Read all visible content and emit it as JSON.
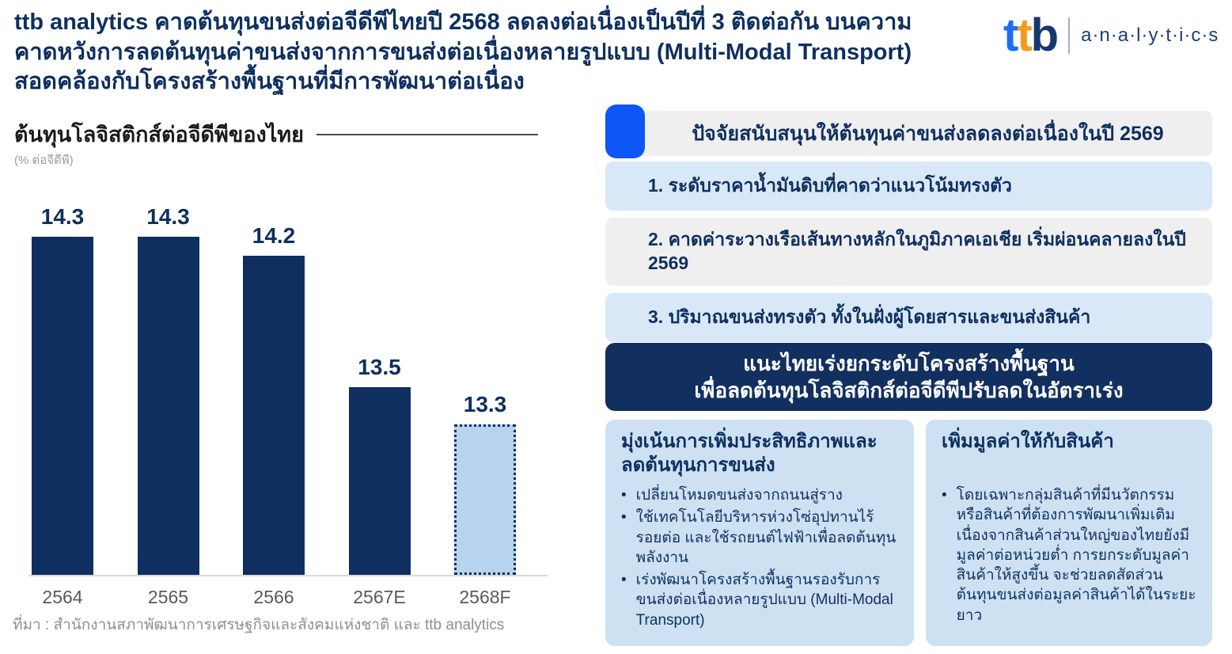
{
  "header": {
    "title_lines": [
      "ttb analytics คาดต้นทุนขนส่งต่อจีดีพีไทยปี 2568 ลดลงต่อเนื่องเป็นปีที่ 3 ติดต่อกัน บนความ",
      "คาดหวังการลดต้นทุนค่าขนส่งจากการขนส่งต่อเนื่องหลายรูปแบบ (Multi-Modal Transport)",
      "สอดคล้องกับโครงสร้างพื้นฐานที่มีการพัฒนาต่อเนื่อง"
    ]
  },
  "logo": {
    "t1": "t",
    "t2": "t",
    "b": "b",
    "analytics": "a·n·a·l·y·t·i·c·s"
  },
  "chart_data": {
    "type": "bar",
    "title": "ต้นทุนโลจิสติกส์ต่อจีดีพีของไทย",
    "subtitle": "(% ต่อจีดีพี)",
    "categories": [
      "2564",
      "2565",
      "2566",
      "2567E",
      "2568F"
    ],
    "values": [
      14.3,
      14.3,
      14.2,
      13.5,
      13.3
    ],
    "labels": [
      "14.3",
      "14.3",
      "14.2",
      "13.5",
      "13.3"
    ],
    "forecast_index": 4,
    "ylim": [
      12.5,
      14.55
    ],
    "grid": false,
    "legend": "none",
    "bar_color": "#0e2f5f",
    "forecast_fill": "#b8d3ed",
    "forecast_border": "#0e2f5f",
    "source": "ที่มา : สำนักงานสภาพัฒนาการเศรษฐกิจและสังคมแห่งชาติ และ ttb analytics"
  },
  "right_panel": {
    "header": "ปัจจัยสนับสนุนให้ต้นทุนค่าขนส่งลดลงต่อเนื่องในปี 2569",
    "factors": [
      {
        "text": "1. ระดับราคาน้ำมันดิบที่คาดว่าแนวโน้มทรงตัว",
        "style": "blue"
      },
      {
        "text": "2. คาดค่าระวางเรือเส้นทางหลักในภูมิภาคเอเชีย เริ่มผ่อนคลายลงในปี 2569",
        "style": "gray"
      },
      {
        "text": "3. ปริมาณขนส่งทรงตัว ทั้งในฝั่งผู้โดยสารและขนส่งสินค้า",
        "style": "blue"
      }
    ],
    "recommendation": {
      "line1": "แนะไทยเร่งยกระดับโครงสร้างพื้นฐาน",
      "line2": "เพื่อลดต้นทุนโลจิสติกส์ต่อจีดีพีปรับลดในอัตราเร่ง"
    },
    "columns": [
      {
        "heading": "มุ่งเน้นการเพิ่มประสิทธิภาพและลดต้นทุนการขนส่ง",
        "bullets": [
          "เปลี่ยนโหมดขนส่งจากถนนสู่ราง",
          "ใช้เทคโนโลยีบริหารห่วงโซ่อุปทานไร้รอยต่อ และใช้รถยนต์ไฟฟ้าเพื่อลดต้นทุนพลังงาน",
          "เร่งพัฒนาโครงสร้างพื้นฐานรองรับการขนส่งต่อเนื่องหลายรูปแบบ (Multi-Modal Transport)"
        ]
      },
      {
        "heading": "เพิ่มมูลค่าให้กับสินค้า",
        "bullets": [
          "โดยเฉพาะกลุ่มสินค้าที่มีนวัตกรรมหรือสินค้าที่ต้องการพัฒนาเพิ่มเติม เนื่องจากสินค้าส่วนใหญ่ของไทยยังมีมูลค่าต่อหน่วยต่ำ การยกระดับมูลค่าสินค้าให้สูงขึ้น จะช่วยลดสัดส่วนต้นทุนขนส่งต่อมูลค่าสินค้าได้ในระยะยาว"
        ]
      }
    ]
  },
  "colors": {
    "navy": "#0e2f5f",
    "bright_blue": "#0e56f5",
    "light_blue_box": "#d9e8f7",
    "column_blue": "#cde1f3",
    "gray_box": "#efeff0",
    "navy_banner": "#12305f",
    "brand_blue": "#1e6df6",
    "brand_orange": "#f59a1d",
    "brand_navy": "#16386e",
    "axis_gray": "#d9d9d9",
    "label_gray": "#595959",
    "source_gray": "#8f8f8f"
  }
}
